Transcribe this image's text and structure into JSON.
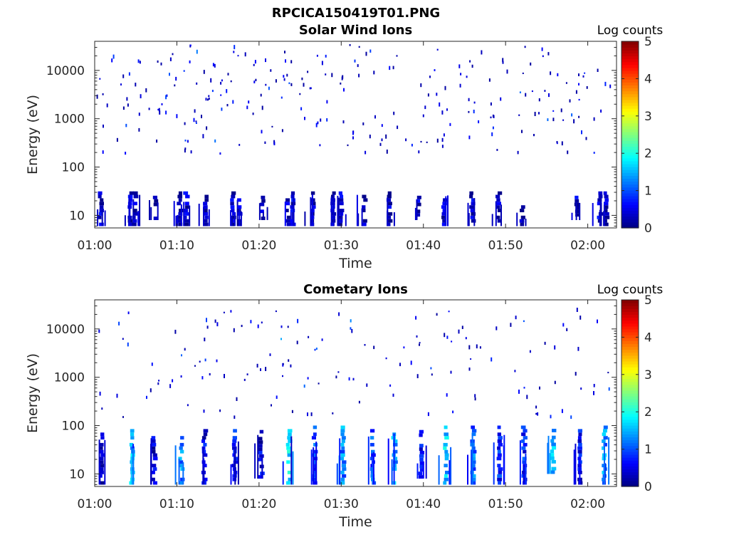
{
  "figure_title": "RPCICA150419T01.PNG",
  "chart_data": [
    {
      "type": "heatmap",
      "title": "Solar Wind Ions",
      "xlabel": "Time",
      "ylabel": "Energy (eV)",
      "x_ticks": [
        "01:00",
        "01:10",
        "01:20",
        "01:30",
        "01:40",
        "01:50",
        "02:00"
      ],
      "x_tick_minutes": [
        0,
        10,
        20,
        30,
        40,
        50,
        60
      ],
      "xlim_minutes": [
        0,
        63.5
      ],
      "y_scale": "log",
      "y_ticks": [
        "10",
        "100",
        "1000",
        "10000"
      ],
      "y_tick_values": [
        10,
        100,
        1000,
        10000
      ],
      "ylim": [
        5.5,
        40000
      ],
      "colorbar": {
        "title": "Log counts",
        "ticks": [
          "0",
          "1",
          "2",
          "3",
          "4",
          "5"
        ],
        "range": [
          0,
          5
        ],
        "colormap": "jet"
      },
      "grid": false,
      "low_energy_bursts": [
        {
          "t": 0.5,
          "e_low": 6,
          "e_high": 28,
          "c": 0.3
        },
        {
          "t": 4.1,
          "e_low": 6,
          "e_high": 28,
          "c": 0.3
        },
        {
          "t": 4.6,
          "e_low": 6,
          "e_high": 28,
          "c": 0.3
        },
        {
          "t": 7.2,
          "e_low": 8,
          "e_high": 22,
          "c": 0.3
        },
        {
          "t": 10.1,
          "e_low": 6,
          "e_high": 28,
          "c": 0.3
        },
        {
          "t": 10.9,
          "e_low": 6,
          "e_high": 28,
          "c": 0.3
        },
        {
          "t": 13.3,
          "e_low": 6,
          "e_high": 28,
          "c": 0.3
        },
        {
          "t": 16.6,
          "e_low": 6,
          "e_high": 28,
          "c": 0.3
        },
        {
          "t": 17.4,
          "e_low": 6,
          "e_high": 22,
          "c": 0.3
        },
        {
          "t": 20.2,
          "e_low": 8,
          "e_high": 22,
          "c": 0.3
        },
        {
          "t": 23.3,
          "e_low": 6,
          "e_high": 28,
          "c": 0.4
        },
        {
          "t": 23.8,
          "e_low": 6,
          "e_high": 28,
          "c": 0.4
        },
        {
          "t": 26.3,
          "e_low": 6,
          "e_high": 28,
          "c": 0.3
        },
        {
          "t": 28.8,
          "e_low": 6,
          "e_high": 28,
          "c": 0.3
        },
        {
          "t": 29.8,
          "e_low": 6,
          "e_high": 28,
          "c": 0.3
        },
        {
          "t": 32.6,
          "e_low": 6,
          "e_high": 28,
          "c": 0.3
        },
        {
          "t": 35.6,
          "e_low": 6,
          "e_high": 28,
          "c": 0.3
        },
        {
          "t": 39.2,
          "e_low": 8,
          "e_high": 22,
          "c": 0.3
        },
        {
          "t": 42.3,
          "e_low": 6,
          "e_high": 28,
          "c": 0.3
        },
        {
          "t": 45.7,
          "e_low": 6,
          "e_high": 28,
          "c": 0.3
        },
        {
          "t": 48.9,
          "e_low": 6,
          "e_high": 28,
          "c": 0.3
        },
        {
          "t": 51.8,
          "e_low": 6,
          "e_high": 14,
          "c": 0.3
        },
        {
          "t": 58.5,
          "e_low": 8,
          "e_high": 22,
          "c": 0.3
        },
        {
          "t": 61.2,
          "e_low": 6,
          "e_high": 28,
          "c": 0.3
        },
        {
          "t": 62.0,
          "e_low": 6,
          "e_high": 28,
          "c": 0.3
        }
      ],
      "scatter_seed": 7,
      "scatter_count": 260,
      "scatter_energy_range": [
        200,
        35000
      ]
    },
    {
      "type": "heatmap",
      "title": "Cometary Ions",
      "xlabel": "Time",
      "ylabel": "Energy (eV)",
      "x_ticks": [
        "01:00",
        "01:10",
        "01:20",
        "01:30",
        "01:40",
        "01:50",
        "02:00"
      ],
      "x_tick_minutes": [
        0,
        10,
        20,
        30,
        40,
        50,
        60
      ],
      "xlim_minutes": [
        0,
        63.5
      ],
      "y_scale": "log",
      "y_ticks": [
        "10",
        "100",
        "1000",
        "10000"
      ],
      "y_tick_values": [
        10,
        100,
        1000,
        10000
      ],
      "ylim": [
        5.5,
        40000
      ],
      "colorbar": {
        "title": "Log counts",
        "ticks": [
          "0",
          "1",
          "2",
          "3",
          "4",
          "5"
        ],
        "range": [
          0,
          5
        ],
        "colormap": "jet"
      },
      "grid": false,
      "low_energy_bursts": [
        {
          "t": 0.6,
          "e_low": 6,
          "e_high": 80,
          "c": 0.5
        },
        {
          "t": 4.3,
          "e_low": 6,
          "e_high": 80,
          "c": 1.6
        },
        {
          "t": 7.0,
          "e_low": 6,
          "e_high": 60,
          "c": 0.4
        },
        {
          "t": 10.3,
          "e_low": 6,
          "e_high": 85,
          "c": 1.2
        },
        {
          "t": 13.1,
          "e_low": 6,
          "e_high": 80,
          "c": 0.5
        },
        {
          "t": 16.8,
          "e_low": 6,
          "e_high": 85,
          "c": 0.6
        },
        {
          "t": 20.0,
          "e_low": 8,
          "e_high": 70,
          "c": 0.4
        },
        {
          "t": 23.4,
          "e_low": 6,
          "e_high": 85,
          "c": 1.7
        },
        {
          "t": 26.5,
          "e_low": 6,
          "e_high": 85,
          "c": 1.0
        },
        {
          "t": 30.0,
          "e_low": 6,
          "e_high": 85,
          "c": 1.3
        },
        {
          "t": 33.6,
          "e_low": 6,
          "e_high": 80,
          "c": 1.0
        },
        {
          "t": 36.2,
          "e_low": 6,
          "e_high": 70,
          "c": 1.4
        },
        {
          "t": 39.5,
          "e_low": 8,
          "e_high": 80,
          "c": 0.6
        },
        {
          "t": 42.5,
          "e_low": 6,
          "e_high": 85,
          "c": 1.6
        },
        {
          "t": 45.8,
          "e_low": 6,
          "e_high": 85,
          "c": 1.1
        },
        {
          "t": 49.0,
          "e_low": 6,
          "e_high": 85,
          "c": 0.8
        },
        {
          "t": 52.0,
          "e_low": 6,
          "e_high": 85,
          "c": 0.7
        },
        {
          "t": 55.5,
          "e_low": 10,
          "e_high": 80,
          "c": 1.5
        },
        {
          "t": 58.8,
          "e_low": 6,
          "e_high": 80,
          "c": 0.6
        },
        {
          "t": 61.8,
          "e_low": 6,
          "e_high": 85,
          "c": 1.3
        }
      ],
      "scatter_seed": 19,
      "scatter_count": 150,
      "scatter_energy_range": [
        150,
        28000
      ]
    }
  ]
}
